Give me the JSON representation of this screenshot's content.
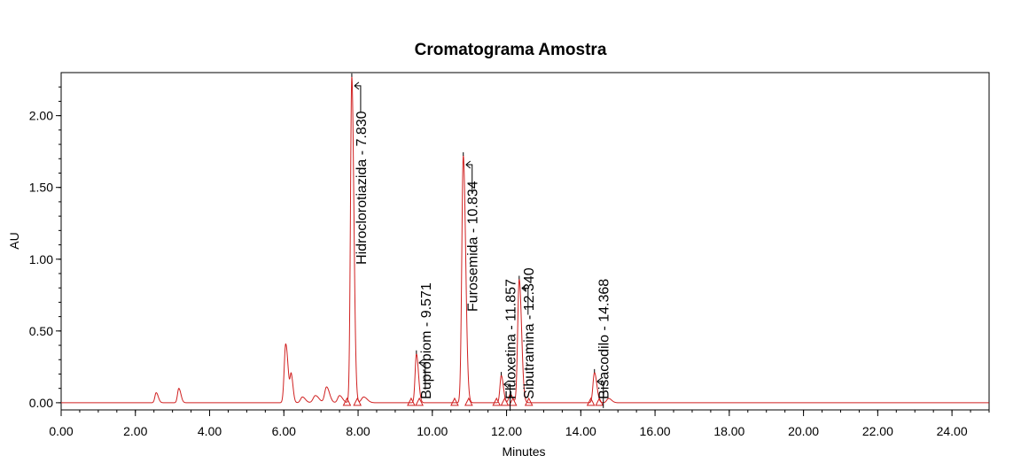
{
  "chart_data": {
    "type": "line",
    "title": "Cromatograma Amostra",
    "xlabel": "Minutes",
    "ylabel": "AU",
    "xlim": [
      0,
      25
    ],
    "ylim": [
      -0.05,
      2.3
    ],
    "x_ticks": [
      "0.00",
      "2.00",
      "4.00",
      "6.00",
      "8.00",
      "10.00",
      "12.00",
      "14.00",
      "16.00",
      "18.00",
      "20.00",
      "22.00",
      "24.00"
    ],
    "y_ticks": [
      "0.00",
      "0.50",
      "1.00",
      "1.50",
      "2.00"
    ],
    "colors": {
      "trace": "#d02020",
      "axis": "#000000",
      "annotation": "#000000"
    },
    "series": [
      {
        "baseline": 0.0,
        "peaks": [
          {
            "rt": 2.56,
            "height": 0.07,
            "width": 0.035
          },
          {
            "rt": 3.17,
            "height": 0.1,
            "width": 0.035
          },
          {
            "rt": 6.05,
            "height": 0.41,
            "width": 0.04
          },
          {
            "rt": 6.2,
            "height": 0.18,
            "width": 0.03
          },
          {
            "rt": 6.5,
            "height": 0.04,
            "width": 0.05
          },
          {
            "rt": 6.85,
            "height": 0.05,
            "width": 0.06
          },
          {
            "rt": 7.15,
            "height": 0.11,
            "width": 0.05
          },
          {
            "rt": 7.5,
            "height": 0.05,
            "width": 0.05
          },
          {
            "rt": 7.83,
            "height": 2.27,
            "width": 0.035
          },
          {
            "rt": 8.15,
            "height": 0.04,
            "width": 0.06
          },
          {
            "rt": 9.571,
            "height": 0.34,
            "width": 0.035
          },
          {
            "rt": 10.834,
            "height": 1.72,
            "width": 0.04
          },
          {
            "rt": 11.857,
            "height": 0.19,
            "width": 0.035
          },
          {
            "rt": 12.1,
            "height": 0.06,
            "width": 0.04
          },
          {
            "rt": 12.34,
            "height": 0.86,
            "width": 0.04
          },
          {
            "rt": 14.368,
            "height": 0.21,
            "width": 0.04
          },
          {
            "rt": 14.75,
            "height": 0.03,
            "width": 0.05
          }
        ]
      }
    ],
    "annotations": [
      {
        "label": "Hidroclorotiazida - 7.830",
        "rt": 7.83
      },
      {
        "label": "Bupropiom - 9.571",
        "rt": 9.571
      },
      {
        "label": "Furosemida - 10.834",
        "rt": 10.834
      },
      {
        "label": "Fluoxetina - 11.857",
        "rt": 11.857
      },
      {
        "label": "Sibutramina - 12.340",
        "rt": 12.34
      },
      {
        "label": "Bisacodilo - 14.368",
        "rt": 14.368
      }
    ],
    "integration_marks": [
      7.7,
      7.98,
      9.43,
      9.65,
      10.6,
      10.98,
      11.73,
      11.95,
      12.17,
      12.6,
      14.27,
      14.5
    ]
  }
}
